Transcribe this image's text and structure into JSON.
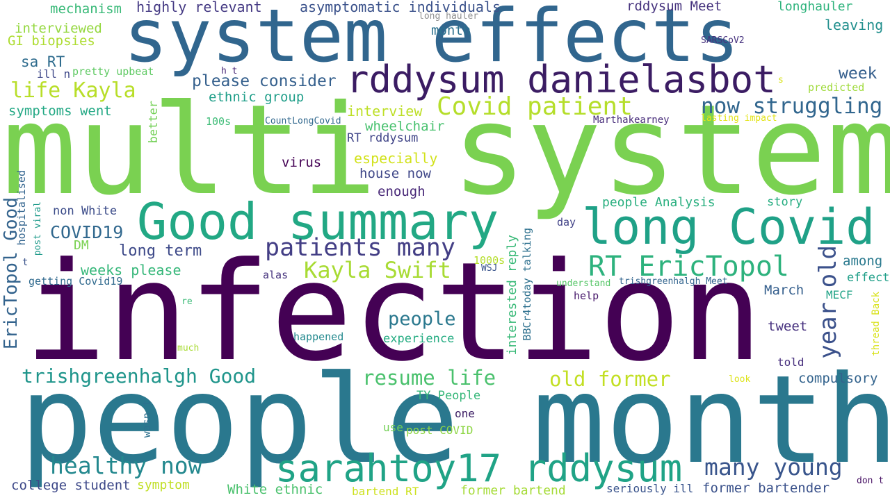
{
  "words": [
    {
      "text": "multi system",
      "color": "#7ad151"
    },
    {
      "text": "infection",
      "color": "#440154"
    },
    {
      "text": "people months",
      "color": "#2a788e"
    },
    {
      "text": "system effects",
      "color": "#31668e"
    },
    {
      "text": "Good summary",
      "color": "#22a884"
    },
    {
      "text": "long Covid",
      "color": "#1fa187"
    },
    {
      "text": "rddysum danielasbot",
      "color": "#3b1c63"
    },
    {
      "text": "sarahtoy17 rddysum",
      "color": "#20a386"
    },
    {
      "text": "RT EricTopol",
      "color": "#2db27d"
    },
    {
      "text": "patients many",
      "color": "#433e85"
    },
    {
      "text": "Covid patient",
      "color": "#b5de2b"
    },
    {
      "text": "now struggling",
      "color": "#31668e"
    },
    {
      "text": "Kayla Swift",
      "color": "#a8db34"
    },
    {
      "text": "life Kayla",
      "color": "#b8de29"
    },
    {
      "text": "healthy now",
      "color": "#23888e"
    },
    {
      "text": "many young",
      "color": "#39558c"
    },
    {
      "text": "year old",
      "color": "#3b518b"
    },
    {
      "text": "old former",
      "color": "#c2df23"
    },
    {
      "text": "resume life",
      "color": "#4ac16d"
    },
    {
      "text": "trishgreenhalgh Good",
      "color": "#1f958b"
    },
    {
      "text": "EricTopol Good",
      "color": "#33638d"
    },
    {
      "text": "people",
      "color": "#2a788e"
    },
    {
      "text": "COVID19",
      "color": "#31688e"
    },
    {
      "text": "long term",
      "color": "#3e4a89"
    },
    {
      "text": "please consider",
      "color": "#35608d"
    },
    {
      "text": "highly relevant",
      "color": "#443983"
    },
    {
      "text": "asymptomatic individuals",
      "color": "#3b528b"
    },
    {
      "text": "rddysum Meet",
      "color": "#46337e"
    },
    {
      "text": "longhauler",
      "color": "#2eb37c"
    },
    {
      "text": "leaving",
      "color": "#218f8d"
    },
    {
      "text": "mechanism",
      "color": "#38b977"
    },
    {
      "text": "interviewed",
      "color": "#95d840"
    },
    {
      "text": "GI biopsies",
      "color": "#addc30"
    },
    {
      "text": "sa RT",
      "color": "#2f6c8e"
    },
    {
      "text": "ill n",
      "color": "#3f4889"
    },
    {
      "text": "pretty upbeat",
      "color": "#5ec962"
    },
    {
      "text": "symptoms went",
      "color": "#22a884"
    },
    {
      "text": "ethnic group",
      "color": "#1f9e89"
    },
    {
      "text": "interview",
      "color": "#bddf26"
    },
    {
      "text": "wheelchair",
      "color": "#48c16e"
    },
    {
      "text": "RT rddysum",
      "color": "#404588"
    },
    {
      "text": "especially",
      "color": "#d2e21b"
    },
    {
      "text": "virus",
      "color": "#440154"
    },
    {
      "text": "house now",
      "color": "#3f4788"
    },
    {
      "text": "enough",
      "color": "#482878"
    },
    {
      "text": "people Analysis",
      "color": "#29af7f"
    },
    {
      "text": "story",
      "color": "#26ad81"
    },
    {
      "text": "week",
      "color": "#355f8d"
    },
    {
      "text": "month",
      "color": "#2c718e"
    },
    {
      "text": "long hauler",
      "color": "#8f8f8f"
    },
    {
      "text": "SARSCoV2",
      "color": "#46327e"
    },
    {
      "text": "predicted",
      "color": "#9fda3a"
    },
    {
      "text": "s",
      "color": "#d8e219"
    },
    {
      "text": "lasting impact",
      "color": "#e2e418"
    },
    {
      "text": "Marthakearney",
      "color": "#472c7a"
    },
    {
      "text": "CountLongCovid",
      "color": "#31688e"
    },
    {
      "text": "100s",
      "color": "#3bbb75"
    },
    {
      "text": "h t",
      "color": "#482575"
    },
    {
      "text": "better",
      "color": "#73d056"
    },
    {
      "text": "hospitalised",
      "color": "#32648e"
    },
    {
      "text": "post viral",
      "color": "#1f9a8a"
    },
    {
      "text": "t",
      "color": "#3a538b"
    },
    {
      "text": "getting Covid19",
      "color": "#306a8e"
    },
    {
      "text": "non White",
      "color": "#3d4d8a"
    },
    {
      "text": "DM",
      "color": "#7ad151"
    },
    {
      "text": "weeks please",
      "color": "#35b779"
    },
    {
      "text": "alas",
      "color": "#46337e"
    },
    {
      "text": "1000s",
      "color": "#b5de2b"
    },
    {
      "text": "WSJ",
      "color": "#3a548c"
    },
    {
      "text": "interested reply",
      "color": "#38b977"
    },
    {
      "text": "BBCr4today talking",
      "color": "#2d708e"
    },
    {
      "text": "day",
      "color": "#414287"
    },
    {
      "text": "understand",
      "color": "#56c667"
    },
    {
      "text": "trishgreenhalgh Meet",
      "color": "#32648e"
    },
    {
      "text": "among",
      "color": "#29798e"
    },
    {
      "text": "effect",
      "color": "#1f9f88"
    },
    {
      "text": "March",
      "color": "#355f8d"
    },
    {
      "text": "MECF",
      "color": "#20a386"
    },
    {
      "text": "help",
      "color": "#481a6c"
    },
    {
      "text": "tweet",
      "color": "#46307e"
    },
    {
      "text": "thread Back",
      "color": "#d8e219"
    },
    {
      "text": "happened",
      "color": "#23898e"
    },
    {
      "text": "experience",
      "color": "#25ac82"
    },
    {
      "text": "re",
      "color": "#3aba76"
    },
    {
      "text": "much",
      "color": "#a8db34"
    },
    {
      "text": "told",
      "color": "#472f7d"
    },
    {
      "text": "look",
      "color": "#dde318"
    },
    {
      "text": "compulsory",
      "color": "#33638d"
    },
    {
      "text": "TY People",
      "color": "#35b779"
    },
    {
      "text": "one",
      "color": "#3b1c63"
    },
    {
      "text": "wasn t",
      "color": "#2d708e"
    },
    {
      "text": "use",
      "color": "#73d056"
    },
    {
      "text": "post COVID",
      "color": "#8ed645"
    },
    {
      "text": "college student",
      "color": "#3e4989"
    },
    {
      "text": "symptom",
      "color": "#c0df25"
    },
    {
      "text": "White ethnic",
      "color": "#4ac16d"
    },
    {
      "text": "bartend RT",
      "color": "#cde11d"
    },
    {
      "text": "former bartend",
      "color": "#a5db36"
    },
    {
      "text": "seriously ill",
      "color": "#3a548c"
    },
    {
      "text": "former bartender",
      "color": "#3b528b"
    },
    {
      "text": "don t",
      "color": "#471164"
    }
  ]
}
